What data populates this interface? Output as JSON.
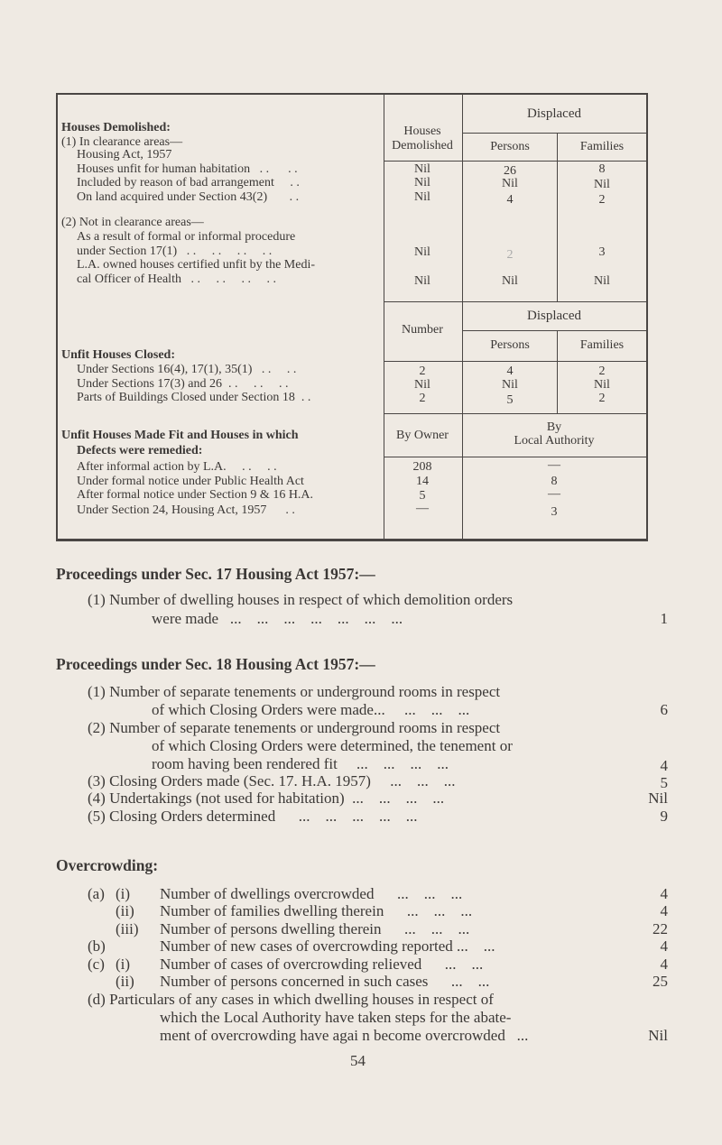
{
  "table": {
    "sec1": {
      "col_houses": [
        "Houses",
        "Demolished"
      ],
      "displaced": "Displaced",
      "persons": "Persons",
      "families": "Families",
      "heading": "Houses Demolished:",
      "lines": [
        "(1) In clearance areas—",
        "Housing Act, 1957",
        "Houses unfit for human habitation   . .      . .",
        "Included by reason of bad arrangement     . .",
        "On land acquired under Section 43(2)       . .",
        "(2) Not in clearance areas—",
        "As a result of formal or informal procedure",
        "under Section 17(1)   . .     . .     . .     . .",
        "L.A. owned houses certified unfit by the Medi-",
        "cal Officer of Health   . .     . .     . .     . ."
      ],
      "rows": [
        {
          "demolished": "Nil",
          "persons": "26",
          "families": "8"
        },
        {
          "demolished": "Nil",
          "persons": "Nil",
          "families": "Nil"
        },
        {
          "demolished": "Nil",
          "persons": "4",
          "families": "2"
        },
        {
          "demolished": "Nil",
          "persons": "2",
          "families": "3"
        },
        {
          "demolished": "Nil",
          "persons": "Nil",
          "families": "Nil"
        }
      ]
    },
    "sec2": {
      "col_number": "Number",
      "displaced": "Displaced",
      "persons": "Persons",
      "families": "Families",
      "heading": "Unfit Houses Closed:",
      "rows": [
        {
          "label": "Under Sections 16(4), 17(1), 35(1)   . .     . .",
          "number": "2",
          "persons": "4",
          "families": "2"
        },
        {
          "label": "Under Sections 17(3) and 26  . .     . .     . .",
          "number": "Nil",
          "persons": "Nil",
          "families": "Nil"
        },
        {
          "label": "Parts of Buildings Closed under Section 18  . .",
          "number": "2",
          "persons": "5",
          "families": "2"
        }
      ]
    },
    "sec3": {
      "col_owner": "By Owner",
      "col_la": [
        "By",
        "Local Authority"
      ],
      "heading": [
        "Unfit Houses Made Fit and Houses in which",
        "Defects were remedied:"
      ],
      "rows": [
        {
          "label": "After informal action by L.A.     . .     . .",
          "owner": "208",
          "la": "—"
        },
        {
          "label": "Under formal notice under Public Health Act",
          "owner": "14",
          "la": "8"
        },
        {
          "label": "After formal notice under Section 9 & 16 H.A.",
          "owner": "5",
          "la": "—"
        },
        {
          "label": "Under Section 24, Housing Act, 1957      . .",
          "owner": "—",
          "la": "3"
        }
      ]
    }
  },
  "sec17": {
    "heading": "Proceedings under Sec. 17 Housing Act 1957:—",
    "items": [
      {
        "lines": [
          "(1) Number of dwelling houses in respect of which demolition orders",
          "were made   ...    ...    ...    ...    ...    ...    ..."
        ],
        "value": "1"
      }
    ]
  },
  "sec18": {
    "heading": "Proceedings under Sec. 18 Housing Act 1957:—",
    "items": [
      {
        "lines": [
          "(1) Number of separate tenements or underground rooms in respect",
          "of which Closing Orders were made...     ...    ...    ..."
        ],
        "value": "6"
      },
      {
        "lines": [
          "(2) Number of separate tenements or underground rooms in respect",
          "of which Closing Orders were determined, the tenement or",
          "room having been rendered fit     ...    ...    ...    ..."
        ],
        "value": "4"
      },
      {
        "lines": [
          "(3) Closing Orders made (Sec. 17. H.A. 1957)     ...    ...    ..."
        ],
        "value": "5"
      },
      {
        "lines": [
          "(4) Undertakings (not used for habitation)  ...    ...    ...    ..."
        ],
        "value": "Nil"
      },
      {
        "lines": [
          "(5) Closing Orders determined      ...    ...    ...    ...    ..."
        ],
        "value": "9"
      }
    ]
  },
  "overcrowding": {
    "heading": "Overcrowding:",
    "items": [
      {
        "a": "(a)",
        "b": "(i)",
        "text": "Number of dwellings overcrowded      ...    ...    ...",
        "value": "4"
      },
      {
        "a": "",
        "b": "(ii)",
        "text": "Number of families dwelling therein      ...    ...    ...",
        "value": "4"
      },
      {
        "a": "",
        "b": "(iii)",
        "text": "Number of persons dwelling therein      ...    ...    ...",
        "value": "22"
      },
      {
        "a": "(b)",
        "b": "",
        "text": "Number of new cases of overcrowding reported ...    ...",
        "value": "4"
      },
      {
        "a": "(c)",
        "b": "(i)",
        "text": "Number of cases of overcrowding relieved      ...    ...",
        "value": "4"
      },
      {
        "a": "",
        "b": "(ii)",
        "text": "Number of persons concerned in such cases      ...    ...",
        "value": "25"
      }
    ],
    "d": {
      "lines": [
        "(d) Particulars of any cases in which dwelling houses in respect of",
        "which the Local Authority have taken steps for the abate-",
        "ment of overcrowding have agai n become overcrowded   ..."
      ],
      "value": "Nil"
    }
  },
  "page_number": "54"
}
